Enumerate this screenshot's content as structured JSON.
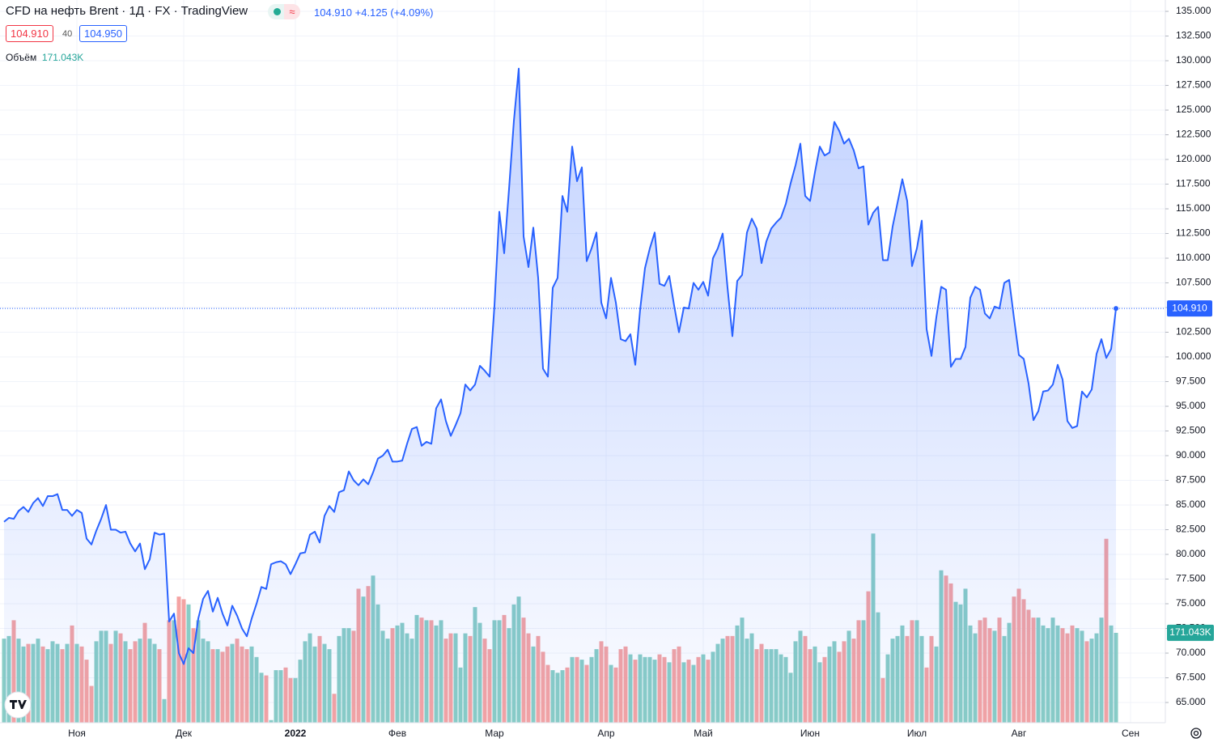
{
  "header": {
    "symbol": "CFD на нефть Brent",
    "interval": "1Д",
    "exchange": "FX",
    "source": "TradingView",
    "last": "104.910",
    "change": "+4.125",
    "change_pct": "(+4.09%)",
    "bid": "104.910",
    "spread": "40",
    "ask": "104.950",
    "volume_label": "Объём",
    "volume_value": "171.043K"
  },
  "chart_data": {
    "type": "area",
    "color": "#2962ff",
    "grid": true,
    "ylim": [
      62.95,
      136.15
    ],
    "yticks": [
      {
        "value": 65,
        "label": "65.000"
      },
      {
        "value": 67.5,
        "label": "67.500"
      },
      {
        "value": 70,
        "label": "70.000"
      },
      {
        "value": 72.5,
        "label": "72.500"
      },
      {
        "value": 75,
        "label": "75.000"
      },
      {
        "value": 77.5,
        "label": "77.500"
      },
      {
        "value": 80,
        "label": "80.000"
      },
      {
        "value": 82.5,
        "label": "82.500"
      },
      {
        "value": 85,
        "label": "85.000"
      },
      {
        "value": 87.5,
        "label": "87.500"
      },
      {
        "value": 90,
        "label": "90.000"
      },
      {
        "value": 92.5,
        "label": "92.500"
      },
      {
        "value": 95,
        "label": "95.000"
      },
      {
        "value": 97.5,
        "label": "97.500"
      },
      {
        "value": 100,
        "label": "100.000"
      },
      {
        "value": 102.5,
        "label": "102.500"
      },
      {
        "value": 105,
        "label": "105.000"
      },
      {
        "value": 107.5,
        "label": "107.500"
      },
      {
        "value": 110,
        "label": "110.000"
      },
      {
        "value": 112.5,
        "label": "112.500"
      },
      {
        "value": 115,
        "label": "115.000"
      },
      {
        "value": 117.5,
        "label": "117.500"
      },
      {
        "value": 120,
        "label": "120.000"
      },
      {
        "value": 122.5,
        "label": "122.500"
      },
      {
        "value": 125,
        "label": "125.000"
      },
      {
        "value": 127.5,
        "label": "127.500"
      },
      {
        "value": 130,
        "label": "130.000"
      },
      {
        "value": 132.5,
        "label": "132.500"
      },
      {
        "value": 135,
        "label": "135.000"
      }
    ],
    "categories": [
      null,
      null,
      null,
      null,
      null,
      null,
      null,
      null,
      null,
      null,
      null,
      null,
      null,
      null,
      null,
      "Ноя",
      null,
      null,
      null,
      null,
      null,
      null,
      null,
      null,
      null,
      null,
      null,
      null,
      null,
      null,
      null,
      null,
      null,
      null,
      null,
      null,
      null,
      "Дек",
      null,
      null,
      null,
      null,
      null,
      null,
      null,
      null,
      null,
      null,
      null,
      null,
      null,
      null,
      null,
      null,
      null,
      null,
      null,
      null,
      null,
      null,
      "2022",
      null,
      null,
      null,
      null,
      null,
      null,
      null,
      null,
      null,
      null,
      null,
      null,
      null,
      null,
      null,
      null,
      null,
      null,
      null,
      null,
      "Фев",
      null,
      null,
      null,
      null,
      null,
      null,
      null,
      null,
      null,
      null,
      null,
      null,
      null,
      null,
      null,
      null,
      null,
      null,
      null,
      "Мар",
      null,
      null,
      null,
      null,
      null,
      null,
      null,
      null,
      null,
      null,
      null,
      null,
      null,
      null,
      null,
      null,
      null,
      null,
      null,
      null,
      null,
      null,
      "Апр",
      null,
      null,
      null,
      null,
      null,
      null,
      null,
      null,
      null,
      null,
      null,
      null,
      null,
      null,
      null,
      null,
      null,
      null,
      null,
      "Май",
      null,
      null,
      null,
      null,
      null,
      null,
      null,
      null,
      null,
      null,
      null,
      null,
      null,
      null,
      null,
      null,
      null,
      null,
      null,
      null,
      null,
      "Июн",
      null,
      null,
      null,
      null,
      null,
      null,
      null,
      null,
      null,
      null,
      null,
      null,
      null,
      null,
      null,
      null,
      null,
      null,
      null,
      null,
      null,
      "Июл",
      null,
      null,
      null,
      null,
      null,
      null,
      null,
      null,
      null,
      null,
      null,
      null,
      null,
      null,
      null,
      null,
      null,
      null,
      null,
      null,
      "Авг",
      null,
      null,
      null,
      null,
      null,
      null,
      null,
      null,
      null,
      null,
      null,
      null,
      null,
      null,
      null,
      null,
      null,
      null,
      null,
      null,
      null,
      null,
      "Сен",
      null
    ],
    "values": [
      83.3,
      83.7,
      83.6,
      84.4,
      84.8,
      84.3,
      85.2,
      85.7,
      84.9,
      85.9,
      85.9,
      86.1,
      84.5,
      84.5,
      83.9,
      84.5,
      84.2,
      81.6,
      81.0,
      82.4,
      83.6,
      85.0,
      82.5,
      82.5,
      82.2,
      82.3,
      81.1,
      80.3,
      81.1,
      78.5,
      79.5,
      82.2,
      82.0,
      82.1,
      73.2,
      74.0,
      70.0,
      68.9,
      70.5,
      70.0,
      73.5,
      75.5,
      76.3,
      74.2,
      75.6,
      74.0,
      72.8,
      74.8,
      73.8,
      72.5,
      71.7,
      73.5,
      75.0,
      76.7,
      76.5,
      79.0,
      79.2,
      79.3,
      79.0,
      78.0,
      79.0,
      80.1,
      80.2,
      82.0,
      82.3,
      81.2,
      83.9,
      84.9,
      84.3,
      86.3,
      86.5,
      88.4,
      87.5,
      87.0,
      87.6,
      87.1,
      88.3,
      89.7,
      90.0,
      90.6,
      89.4,
      89.4,
      89.5,
      91.2,
      92.7,
      92.9,
      91.0,
      91.4,
      91.2,
      94.8,
      95.7,
      93.5,
      92.0,
      93.1,
      94.3,
      97.2,
      96.6,
      97.2,
      99.1,
      98.6,
      98.0,
      105.2,
      114.7,
      110.5,
      117.0,
      123.9,
      129.2,
      112.2,
      109.1,
      113.1,
      108.0,
      98.8,
      98.0,
      107.0,
      108.0,
      116.3,
      114.7,
      121.3,
      117.8,
      119.2,
      109.7,
      111.0,
      112.6,
      105.5,
      103.9,
      108.0,
      105.5,
      101.8,
      101.6,
      102.3,
      99.2,
      104.8,
      109.0,
      111.0,
      112.6,
      107.4,
      107.2,
      108.2,
      105.2,
      102.5,
      105.0,
      104.9,
      107.5,
      106.8,
      107.6,
      106.2,
      110.0,
      111.0,
      112.5,
      107.0,
      102.1,
      107.7,
      108.3,
      112.6,
      114.0,
      113.0,
      109.5,
      111.7,
      113.0,
      113.6,
      114.1,
      115.5,
      117.6,
      119.4,
      121.6,
      116.3,
      115.8,
      118.7,
      121.3,
      120.4,
      120.7,
      123.8,
      122.9,
      121.6,
      122.1,
      120.9,
      119.1,
      119.3,
      113.4,
      114.6,
      115.2,
      109.8,
      109.8,
      113.2,
      115.6,
      118.0,
      115.8,
      109.2,
      111.0,
      113.8,
      102.8,
      100.1,
      104.0,
      107.1,
      106.8,
      99.0,
      99.8,
      99.8,
      101.0,
      106.0,
      107.1,
      106.8,
      104.4,
      103.9,
      105.1,
      104.9,
      107.5,
      107.8,
      103.9,
      100.2,
      99.8,
      97.3,
      93.6,
      94.5,
      96.5,
      96.6,
      97.2,
      99.2,
      97.7,
      93.5,
      92.8,
      93.0,
      96.5,
      95.9,
      96.7,
      100.3,
      101.8,
      99.9,
      100.8,
      104.91,
      null,
      null,
      null,
      null
    ],
    "volume": {
      "up_color": "#89cdc6",
      "down_color": "#f4a3a3",
      "values": [
        160,
        165,
        195,
        160,
        145,
        150,
        150,
        160,
        145,
        140,
        155,
        150,
        140,
        150,
        185,
        150,
        145,
        120,
        70,
        155,
        175,
        175,
        150,
        175,
        170,
        155,
        140,
        155,
        160,
        190,
        160,
        150,
        140,
        45,
        195,
        195,
        240,
        235,
        225,
        180,
        195,
        160,
        155,
        140,
        140,
        135,
        145,
        150,
        160,
        145,
        140,
        145,
        125,
        95,
        90,
        5,
        100,
        100,
        105,
        85,
        85,
        120,
        155,
        170,
        145,
        165,
        150,
        140,
        55,
        165,
        180,
        180,
        175,
        255,
        240,
        260,
        280,
        225,
        175,
        160,
        180,
        185,
        190,
        170,
        160,
        205,
        200,
        195,
        195,
        185,
        195,
        160,
        170,
        170,
        105,
        170,
        165,
        220,
        190,
        160,
        140,
        195,
        195,
        205,
        180,
        225,
        240,
        200,
        170,
        145,
        165,
        135,
        110,
        100,
        95,
        100,
        105,
        125,
        125,
        120,
        110,
        125,
        140,
        155,
        145,
        110,
        105,
        140,
        145,
        130,
        120,
        130,
        125,
        125,
        120,
        130,
        125,
        115,
        140,
        145,
        115,
        120,
        110,
        125,
        130,
        120,
        135,
        150,
        160,
        165,
        165,
        185,
        200,
        160,
        170,
        140,
        150,
        140,
        140,
        140,
        130,
        125,
        95,
        155,
        175,
        165,
        140,
        145,
        115,
        125,
        145,
        155,
        135,
        155,
        175,
        160,
        195,
        195,
        250,
        360,
        210,
        85,
        130,
        160,
        165,
        185,
        165,
        195,
        195,
        165,
        105,
        165,
        145,
        290,
        280,
        265,
        230,
        225,
        255,
        185,
        170,
        195,
        200,
        180,
        175,
        200,
        165,
        190,
        240,
        255,
        235,
        215,
        200,
        200,
        185,
        180,
        200,
        185,
        180,
        170,
        185,
        180,
        175,
        155,
        160,
        170,
        200,
        350,
        185,
        171.043,
        null,
        null,
        null,
        null
      ]
    }
  }
}
